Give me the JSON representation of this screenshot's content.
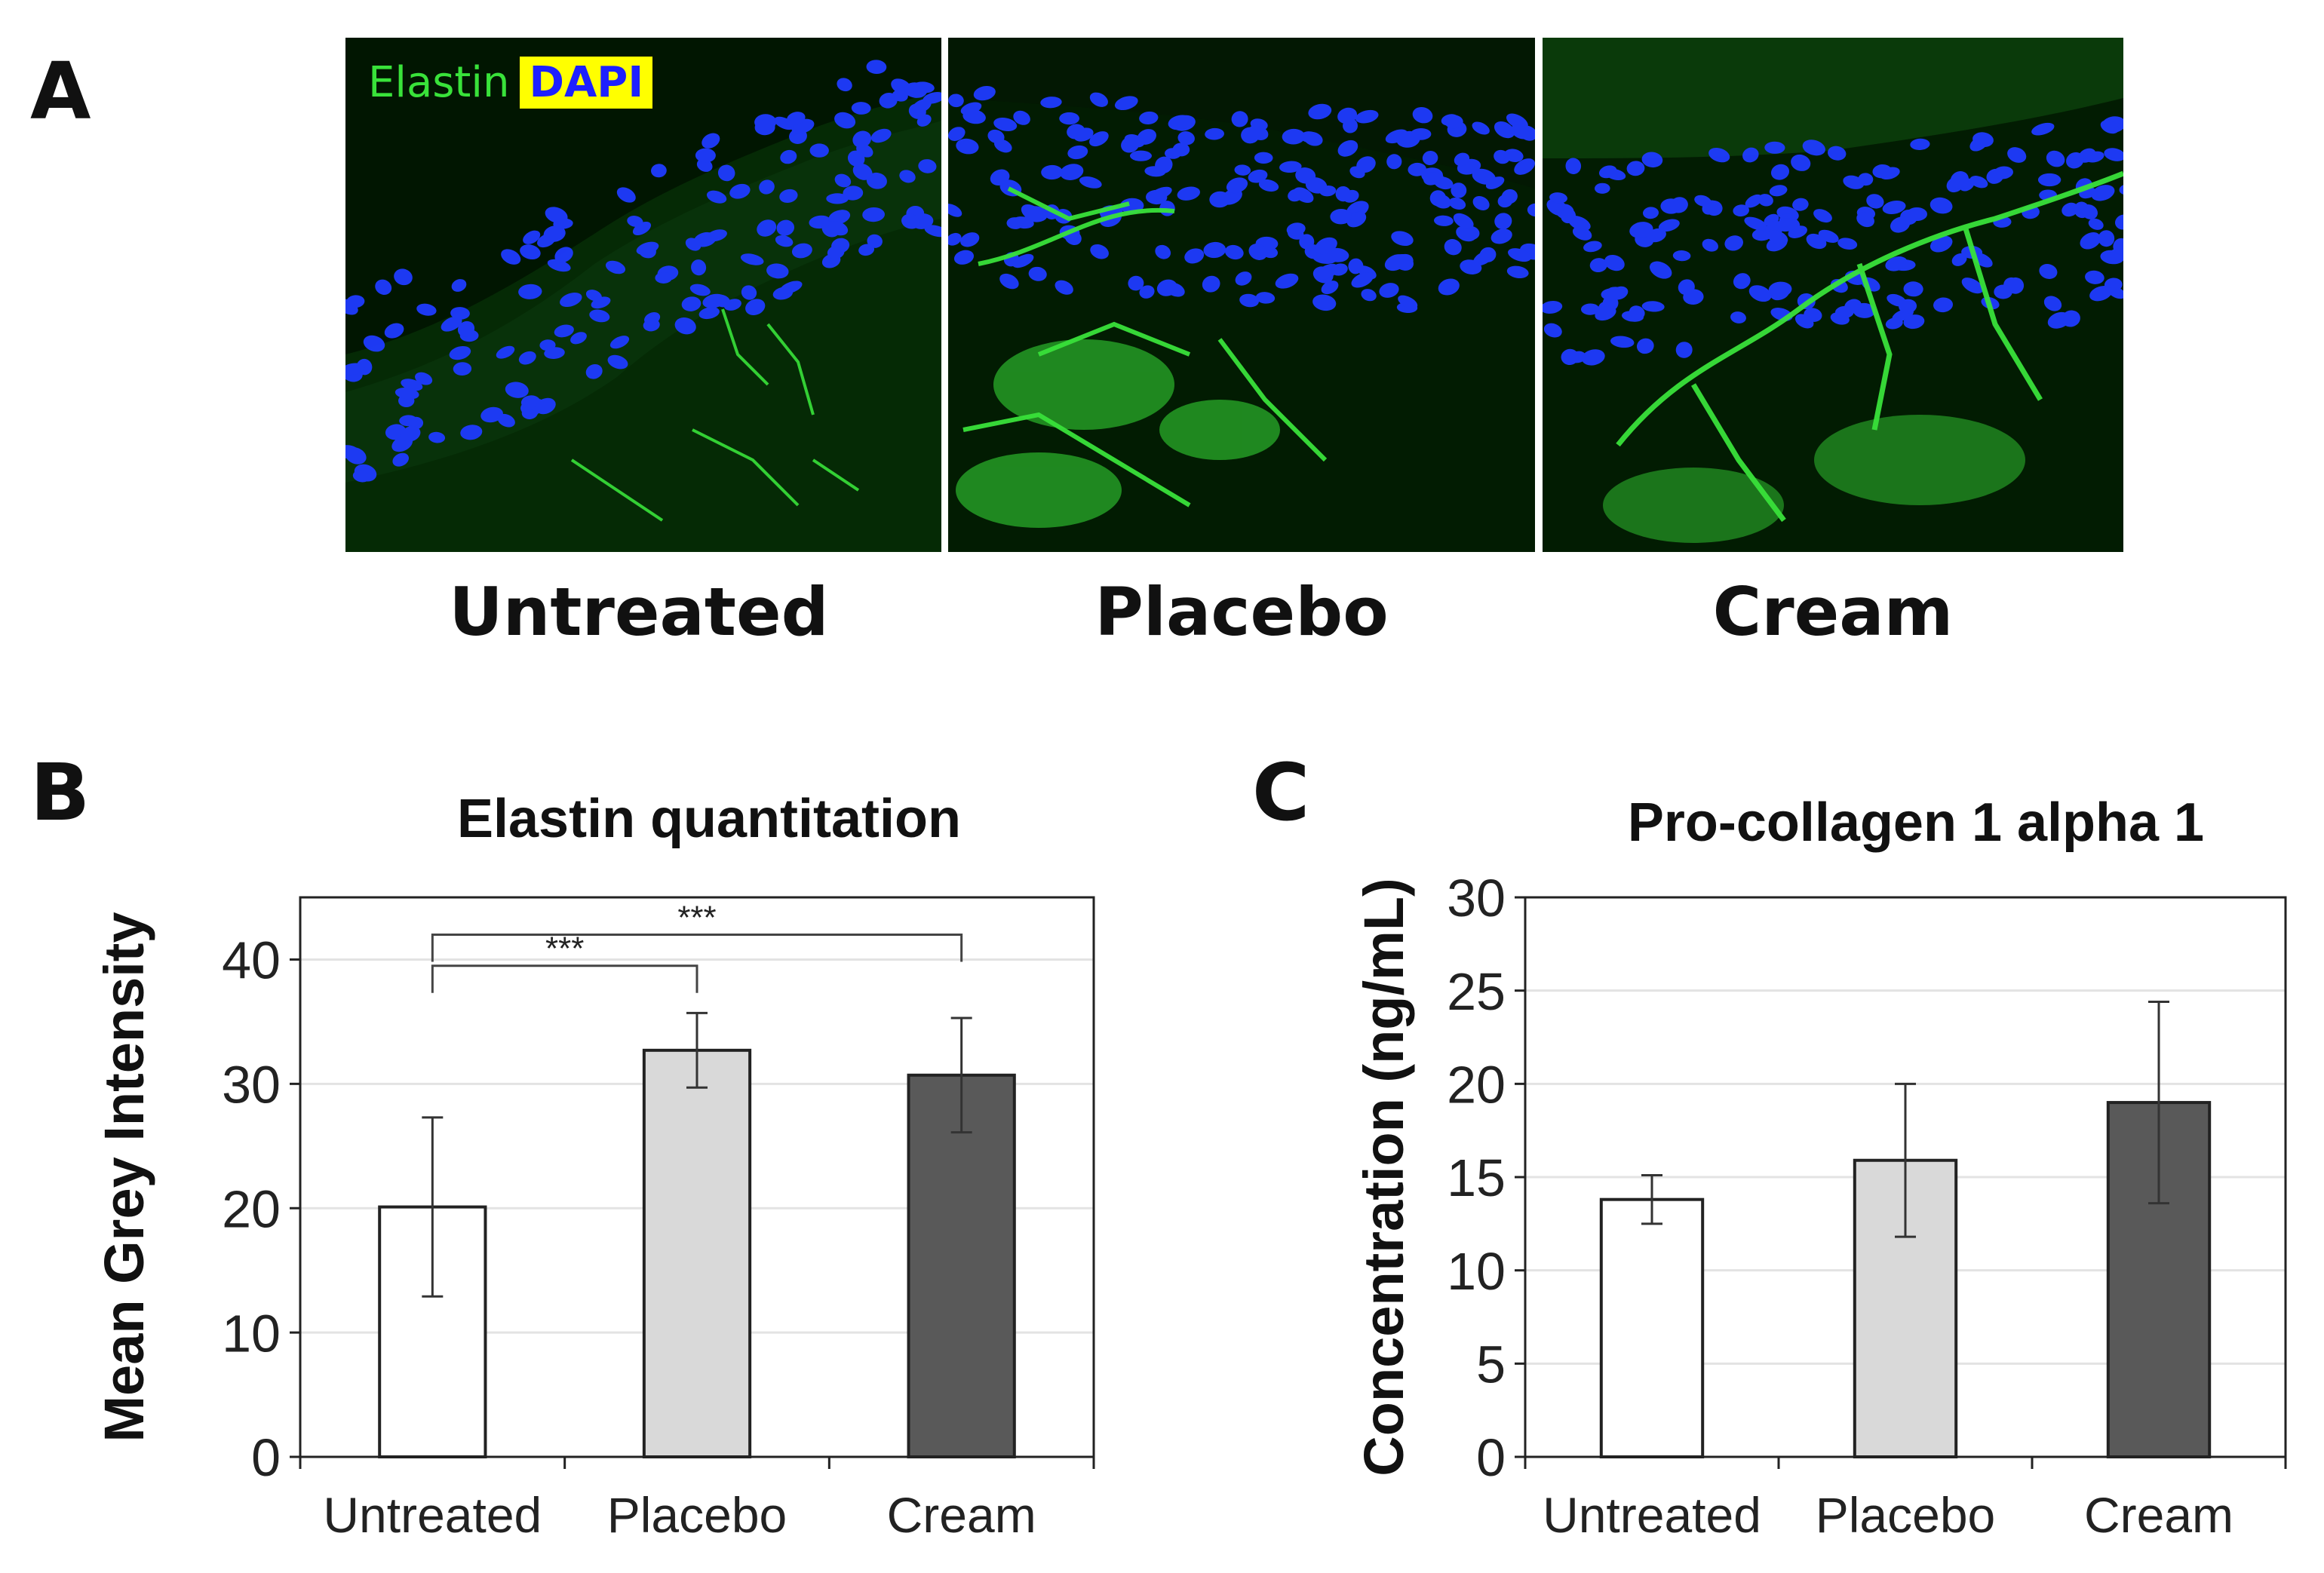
{
  "panels": {
    "a_letter": "A",
    "b_letter": "B",
    "c_letter": "C"
  },
  "panel_a": {
    "legend": {
      "elastin": "Elastin",
      "dapi": "DAPI"
    },
    "conditions": [
      "Untreated",
      "Placebo",
      "Cream"
    ],
    "colors": {
      "elastin": "#39e23a",
      "dapi": "#1f3cff",
      "background": "#021a02"
    }
  },
  "chart_data": [
    {
      "type": "bar",
      "title": "Elastin quantitation",
      "xlabel": "",
      "ylabel": "Mean Grey Intensity",
      "categories": [
        "Untreated",
        "Placebo",
        "Cream"
      ],
      "values": [
        20.1,
        32.7,
        30.7
      ],
      "error": [
        7.2,
        3.0,
        4.6
      ],
      "ylim": [
        0,
        45
      ],
      "yticks": [
        0,
        10,
        20,
        30,
        40
      ],
      "grid": true,
      "bar_colors": [
        "#ffffff",
        "#d9d9d9",
        "#595959"
      ],
      "significance": [
        {
          "from": "Untreated",
          "to": "Placebo",
          "label": "***"
        },
        {
          "from": "Untreated",
          "to": "Cream",
          "label": "***"
        }
      ]
    },
    {
      "type": "bar",
      "title": "Pro-collagen 1 alpha 1",
      "xlabel": "",
      "ylabel": "Concentration (ng/mL)",
      "categories": [
        "Untreated",
        "Placebo",
        "Cream"
      ],
      "values": [
        13.8,
        15.9,
        19.0
      ],
      "error": [
        1.3,
        4.1,
        5.4
      ],
      "ylim": [
        0,
        30
      ],
      "yticks": [
        0,
        5,
        10,
        15,
        20,
        25,
        30
      ],
      "grid": true,
      "bar_colors": [
        "#ffffff",
        "#d9d9d9",
        "#595959"
      ]
    }
  ]
}
